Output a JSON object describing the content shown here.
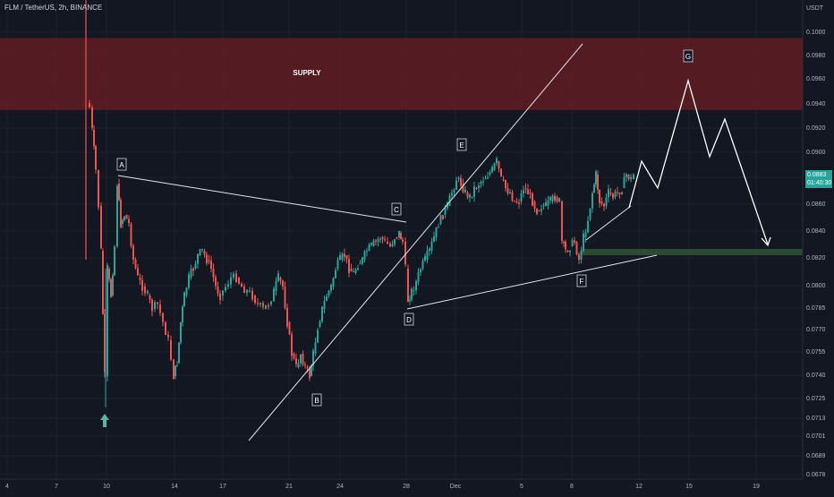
{
  "header": {
    "symbol_line": "FLM / TetherUS, 2h, BINANCE",
    "currency": "USDT"
  },
  "colors": {
    "background": "#131722",
    "up": "#26a69a",
    "down": "#ef5350",
    "supply_zone": "#6b1d24",
    "support_zone": "#2d4a35",
    "line": "#d1d4dc"
  },
  "current_price": {
    "value": "0.0883",
    "countdown": "01:40:30"
  },
  "chart_data": {
    "type": "candlestick",
    "y_ticks": [
      "0.1000",
      "0.0980",
      "0.0960",
      "0.0940",
      "0.0920",
      "0.0900",
      "0.0880",
      "0.0860",
      "0.0840",
      "0.0820",
      "0.0800",
      "0.0785",
      "0.0770",
      "0.0755",
      "0.0740",
      "0.0725",
      "0.0713",
      "0.0701",
      "0.0689",
      "0.0678"
    ],
    "x_ticks": [
      "4",
      "7",
      "10",
      "14",
      "17",
      "21",
      "24",
      "28",
      "Dec",
      "5",
      "8",
      "12",
      "15",
      "19"
    ],
    "zones": [
      {
        "label": "SUPPLY",
        "from": 0.0935,
        "to": 0.0995
      },
      {
        "label": "",
        "from": 0.0823,
        "to": 0.0826
      }
    ],
    "wave_points": [
      {
        "label": "A",
        "date": "Nov 10",
        "price": 0.0875
      },
      {
        "label": "B",
        "date": "Nov 22",
        "price": 0.0733
      },
      {
        "label": "C",
        "date": "Nov 28",
        "price": 0.0846
      },
      {
        "label": "D",
        "date": "Nov 28",
        "price": 0.0785
      },
      {
        "label": "E",
        "date": "Dec 1",
        "price": 0.089
      },
      {
        "label": "F",
        "date": "Dec 8",
        "price": 0.0813
      },
      {
        "label": "G",
        "date": "Dec 15",
        "price": 0.096
      }
    ],
    "marker": {
      "type": "up-arrow",
      "date": "Nov 10",
      "price": 0.0713
    }
  }
}
